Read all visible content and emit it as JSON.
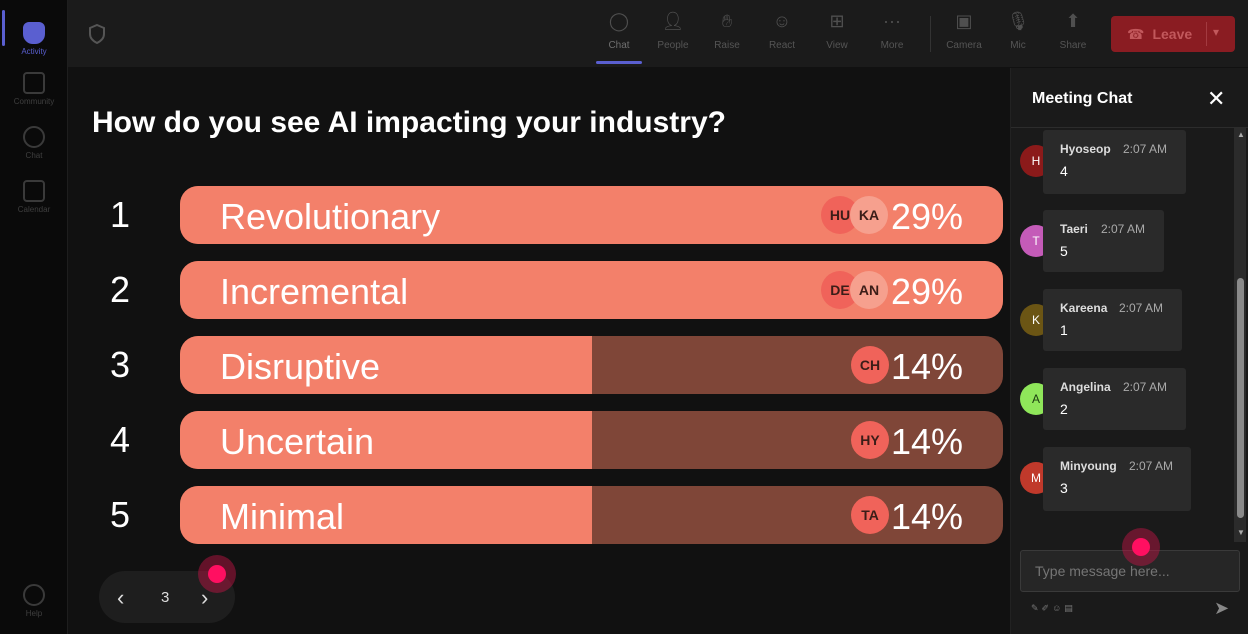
{
  "rail": {
    "items": [
      {
        "label": "Activity",
        "icon": "bell-icon",
        "active": true
      },
      {
        "label": "Community",
        "icon": "community-icon"
      },
      {
        "label": "Chat",
        "icon": "chat-icon"
      },
      {
        "label": "Calendar",
        "icon": "calendar-icon"
      },
      {
        "label": "Help",
        "icon": "help-icon"
      }
    ]
  },
  "toolbar": {
    "buttons": [
      {
        "label": "Chat",
        "icon": "chat-icon",
        "active": true
      },
      {
        "label": "People",
        "icon": "people-icon"
      },
      {
        "label": "Raise",
        "icon": "hand-icon"
      },
      {
        "label": "React",
        "icon": "smiley-icon"
      },
      {
        "label": "View",
        "icon": "grid-icon"
      },
      {
        "label": "More",
        "icon": "more-icon"
      },
      {
        "label": "Camera",
        "icon": "camera-off-icon"
      },
      {
        "label": "Mic",
        "icon": "mic-icon"
      },
      {
        "label": "Share",
        "icon": "share-icon"
      }
    ],
    "leave_label": "Leave"
  },
  "poll": {
    "question": "How do you see AI impacting your industry?",
    "options": [
      {
        "num": "1",
        "label": "Revolutionary",
        "percent": "29%",
        "value": 29,
        "fill_fraction": 1.0,
        "avatars": [
          "HU",
          "KA"
        ]
      },
      {
        "num": "2",
        "label": "Incremental",
        "percent": "29%",
        "value": 29,
        "fill_fraction": 1.0,
        "avatars": [
          "DE",
          "AN"
        ]
      },
      {
        "num": "3",
        "label": "Disruptive",
        "percent": "14%",
        "value": 14,
        "fill_fraction": 0.5,
        "avatars": [
          "CH"
        ]
      },
      {
        "num": "4",
        "label": "Uncertain",
        "percent": "14%",
        "value": 14,
        "fill_fraction": 0.5,
        "avatars": [
          "HY"
        ]
      },
      {
        "num": "5",
        "label": "Minimal",
        "percent": "14%",
        "value": 14,
        "fill_fraction": 0.5,
        "avatars": [
          "TA"
        ]
      }
    ],
    "colors": {
      "fill": "#f3806a",
      "track": "#7f4638"
    }
  },
  "pager": {
    "page": "3"
  },
  "chat": {
    "title": "Meeting Chat",
    "messages": [
      {
        "initial": "H",
        "name": "Hyoseop",
        "time": "2:07 AM",
        "text": "4",
        "avatar_color": "#8b1a1a"
      },
      {
        "initial": "T",
        "name": "Taeri",
        "time": "2:07 AM",
        "text": "5",
        "avatar_color": "#c45bb8"
      },
      {
        "initial": "K",
        "name": "Kareena",
        "time": "2:07 AM",
        "text": "1",
        "avatar_color": "#6b5514"
      },
      {
        "initial": "A",
        "name": "Angelina",
        "time": "2:07 AM",
        "text": "2",
        "avatar_color": "#8fe65a"
      },
      {
        "initial": "M",
        "name": "Minyoung",
        "time": "2:07 AM",
        "text": "3",
        "avatar_color": "#c0392b"
      }
    ],
    "input_placeholder": "Type message here..."
  }
}
